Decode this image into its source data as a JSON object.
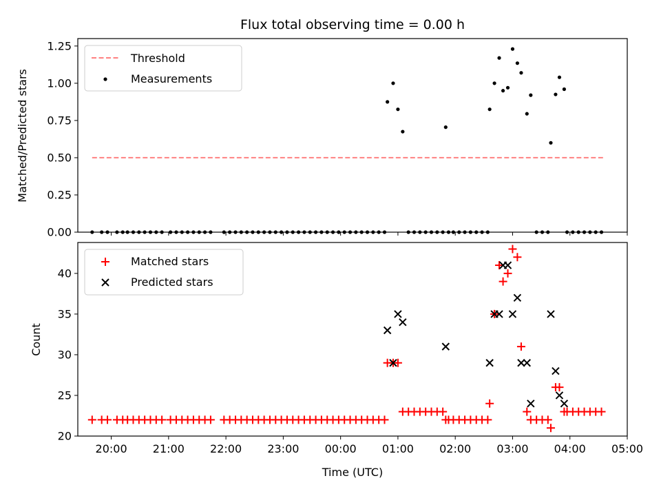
{
  "chart_data": [
    {
      "type": "scatter",
      "title": "Flux total observing time = 0.00 h",
      "ylabel": "Matched/Predicted stars",
      "xlabel": "",
      "ylim": [
        0,
        1.3
      ],
      "xlim": [
        "19:25",
        "05:00"
      ],
      "xticks": [
        "20:00",
        "21:00",
        "22:00",
        "23:00",
        "00:00",
        "01:00",
        "02:00",
        "03:00",
        "04:00",
        "05:00"
      ],
      "yticks": [
        "0.00",
        "0.25",
        "0.50",
        "0.75",
        "1.00",
        "1.25"
      ],
      "legend_position": "upper-left",
      "series": [
        {
          "name": "Threshold",
          "kind": "line",
          "color": "#ff8080",
          "style": "dashed",
          "points": [
            [
              "19:40",
              0.5
            ],
            [
              "04:36",
              0.5
            ]
          ]
        },
        {
          "name": "Measurements",
          "kind": "scatter",
          "marker": "dot",
          "color": "#000000",
          "points": [
            [
              "19:40",
              0
            ],
            [
              "19:50",
              0
            ],
            [
              "19:56",
              0
            ],
            [
              "20:06",
              0
            ],
            [
              "20:12",
              0
            ],
            [
              "20:17",
              0
            ],
            [
              "20:23",
              0
            ],
            [
              "20:29",
              0
            ],
            [
              "20:35",
              0
            ],
            [
              "20:41",
              0
            ],
            [
              "20:47",
              0
            ],
            [
              "20:53",
              0
            ],
            [
              "21:02",
              0
            ],
            [
              "21:08",
              0
            ],
            [
              "21:14",
              0
            ],
            [
              "21:20",
              0
            ],
            [
              "21:26",
              0
            ],
            [
              "21:32",
              0
            ],
            [
              "21:38",
              0
            ],
            [
              "21:44",
              0
            ],
            [
              "21:58",
              0
            ],
            [
              "22:04",
              0
            ],
            [
              "22:10",
              0
            ],
            [
              "22:16",
              0
            ],
            [
              "22:22",
              0
            ],
            [
              "22:28",
              0
            ],
            [
              "22:34",
              0
            ],
            [
              "22:40",
              0
            ],
            [
              "22:46",
              0
            ],
            [
              "22:52",
              0
            ],
            [
              "22:58",
              0
            ],
            [
              "23:04",
              0
            ],
            [
              "23:10",
              0
            ],
            [
              "23:16",
              0
            ],
            [
              "23:22",
              0
            ],
            [
              "23:28",
              0
            ],
            [
              "23:34",
              0
            ],
            [
              "23:40",
              0
            ],
            [
              "23:46",
              0
            ],
            [
              "23:52",
              0
            ],
            [
              "23:58",
              0
            ],
            [
              "00:04",
              0
            ],
            [
              "00:10",
              0
            ],
            [
              "00:16",
              0
            ],
            [
              "00:22",
              0
            ],
            [
              "00:28",
              0
            ],
            [
              "00:34",
              0
            ],
            [
              "00:40",
              0
            ],
            [
              "00:46",
              0
            ],
            [
              "00:49",
              0.875
            ],
            [
              "00:55",
              1.0
            ],
            [
              "01:00",
              0.825
            ],
            [
              "01:05",
              0.675
            ],
            [
              "01:11",
              0
            ],
            [
              "01:17",
              0
            ],
            [
              "01:23",
              0
            ],
            [
              "01:29",
              0
            ],
            [
              "01:35",
              0
            ],
            [
              "01:41",
              0
            ],
            [
              "01:47",
              0
            ],
            [
              "01:53",
              0
            ],
            [
              "01:58",
              0
            ],
            [
              "02:04",
              0
            ],
            [
              "02:10",
              0
            ],
            [
              "02:16",
              0
            ],
            [
              "02:22",
              0
            ],
            [
              "02:28",
              0
            ],
            [
              "02:34",
              0
            ],
            [
              "01:50",
              0.705
            ],
            [
              "02:36",
              0.825
            ],
            [
              "02:41",
              1.0
            ],
            [
              "02:46",
              1.17
            ],
            [
              "02:50",
              0.95
            ],
            [
              "02:55",
              0.97
            ],
            [
              "03:00",
              1.23
            ],
            [
              "03:05",
              1.135
            ],
            [
              "03:09",
              1.07
            ],
            [
              "03:15",
              0.795
            ],
            [
              "03:19",
              0.92
            ],
            [
              "03:25",
              0
            ],
            [
              "03:31",
              0
            ],
            [
              "03:37",
              0
            ],
            [
              "03:40",
              0.6
            ],
            [
              "03:45",
              0.925
            ],
            [
              "03:49",
              1.04
            ],
            [
              "03:54",
              0.96
            ],
            [
              "03:57",
              0
            ],
            [
              "04:03",
              0
            ],
            [
              "04:09",
              0
            ],
            [
              "04:15",
              0
            ],
            [
              "04:21",
              0
            ],
            [
              "04:27",
              0
            ],
            [
              "04:33",
              0
            ]
          ]
        }
      ]
    },
    {
      "type": "scatter",
      "title": "",
      "ylabel": "Count",
      "xlabel": "Time (UTC)",
      "ylim": [
        20,
        43.8
      ],
      "xlim": [
        "19:25",
        "05:00"
      ],
      "xticks": [
        "20:00",
        "21:00",
        "22:00",
        "23:00",
        "00:00",
        "01:00",
        "02:00",
        "03:00",
        "04:00",
        "05:00"
      ],
      "yticks": [
        "20",
        "25",
        "30",
        "35",
        "40"
      ],
      "legend_position": "upper-left",
      "series": [
        {
          "name": "Matched stars",
          "kind": "scatter",
          "marker": "plus",
          "color": "#ff0000",
          "points": [
            [
              "19:40",
              22
            ],
            [
              "19:50",
              22
            ],
            [
              "19:56",
              22
            ],
            [
              "20:06",
              22
            ],
            [
              "20:12",
              22
            ],
            [
              "20:17",
              22
            ],
            [
              "20:23",
              22
            ],
            [
              "20:29",
              22
            ],
            [
              "20:35",
              22
            ],
            [
              "20:41",
              22
            ],
            [
              "20:47",
              22
            ],
            [
              "20:53",
              22
            ],
            [
              "21:02",
              22
            ],
            [
              "21:08",
              22
            ],
            [
              "21:14",
              22
            ],
            [
              "21:20",
              22
            ],
            [
              "21:26",
              22
            ],
            [
              "21:32",
              22
            ],
            [
              "21:38",
              22
            ],
            [
              "21:44",
              22
            ],
            [
              "21:58",
              22
            ],
            [
              "22:04",
              22
            ],
            [
              "22:10",
              22
            ],
            [
              "22:16",
              22
            ],
            [
              "22:22",
              22
            ],
            [
              "22:28",
              22
            ],
            [
              "22:34",
              22
            ],
            [
              "22:40",
              22
            ],
            [
              "22:46",
              22
            ],
            [
              "22:52",
              22
            ],
            [
              "22:58",
              22
            ],
            [
              "23:04",
              22
            ],
            [
              "23:10",
              22
            ],
            [
              "23:16",
              22
            ],
            [
              "23:22",
              22
            ],
            [
              "23:28",
              22
            ],
            [
              "23:34",
              22
            ],
            [
              "23:40",
              22
            ],
            [
              "23:46",
              22
            ],
            [
              "23:52",
              22
            ],
            [
              "23:58",
              22
            ],
            [
              "00:04",
              22
            ],
            [
              "00:10",
              22
            ],
            [
              "00:16",
              22
            ],
            [
              "00:22",
              22
            ],
            [
              "00:28",
              22
            ],
            [
              "00:34",
              22
            ],
            [
              "00:40",
              22
            ],
            [
              "00:46",
              22
            ],
            [
              "00:49",
              29
            ],
            [
              "00:55",
              29
            ],
            [
              "01:00",
              29
            ],
            [
              "01:05",
              23
            ],
            [
              "01:11",
              23
            ],
            [
              "01:17",
              23
            ],
            [
              "01:23",
              23
            ],
            [
              "01:29",
              23
            ],
            [
              "01:35",
              23
            ],
            [
              "01:41",
              23
            ],
            [
              "01:47",
              23
            ],
            [
              "01:50",
              22
            ],
            [
              "01:53",
              22
            ],
            [
              "01:58",
              22
            ],
            [
              "02:04",
              22
            ],
            [
              "02:10",
              22
            ],
            [
              "02:16",
              22
            ],
            [
              "02:22",
              22
            ],
            [
              "02:28",
              22
            ],
            [
              "02:34",
              22
            ],
            [
              "02:36",
              24
            ],
            [
              "02:41",
              35
            ],
            [
              "02:46",
              41
            ],
            [
              "02:50",
              39
            ],
            [
              "02:55",
              40
            ],
            [
              "03:00",
              43
            ],
            [
              "03:05",
              42
            ],
            [
              "03:09",
              31
            ],
            [
              "03:15",
              23
            ],
            [
              "03:19",
              22
            ],
            [
              "03:25",
              22
            ],
            [
              "03:31",
              22
            ],
            [
              "03:37",
              22
            ],
            [
              "03:40",
              21
            ],
            [
              "03:45",
              26
            ],
            [
              "03:49",
              26
            ],
            [
              "03:54",
              23
            ],
            [
              "03:57",
              23
            ],
            [
              "04:03",
              23
            ],
            [
              "04:09",
              23
            ],
            [
              "04:15",
              23
            ],
            [
              "04:21",
              23
            ],
            [
              "04:27",
              23
            ],
            [
              "04:33",
              23
            ]
          ]
        },
        {
          "name": "Predicted stars",
          "kind": "scatter",
          "marker": "x",
          "color": "#000000",
          "points": [
            [
              "00:49",
              33
            ],
            [
              "00:55",
              29
            ],
            [
              "01:00",
              35
            ],
            [
              "01:05",
              34
            ],
            [
              "01:50",
              31
            ],
            [
              "02:36",
              29
            ],
            [
              "02:41",
              35
            ],
            [
              "02:46",
              35
            ],
            [
              "02:50",
              41
            ],
            [
              "02:55",
              41
            ],
            [
              "03:00",
              35
            ],
            [
              "03:05",
              37
            ],
            [
              "03:09",
              29
            ],
            [
              "03:15",
              29
            ],
            [
              "03:19",
              24
            ],
            [
              "03:40",
              35
            ],
            [
              "03:45",
              28
            ],
            [
              "03:49",
              25
            ],
            [
              "03:54",
              24
            ]
          ]
        }
      ]
    }
  ]
}
